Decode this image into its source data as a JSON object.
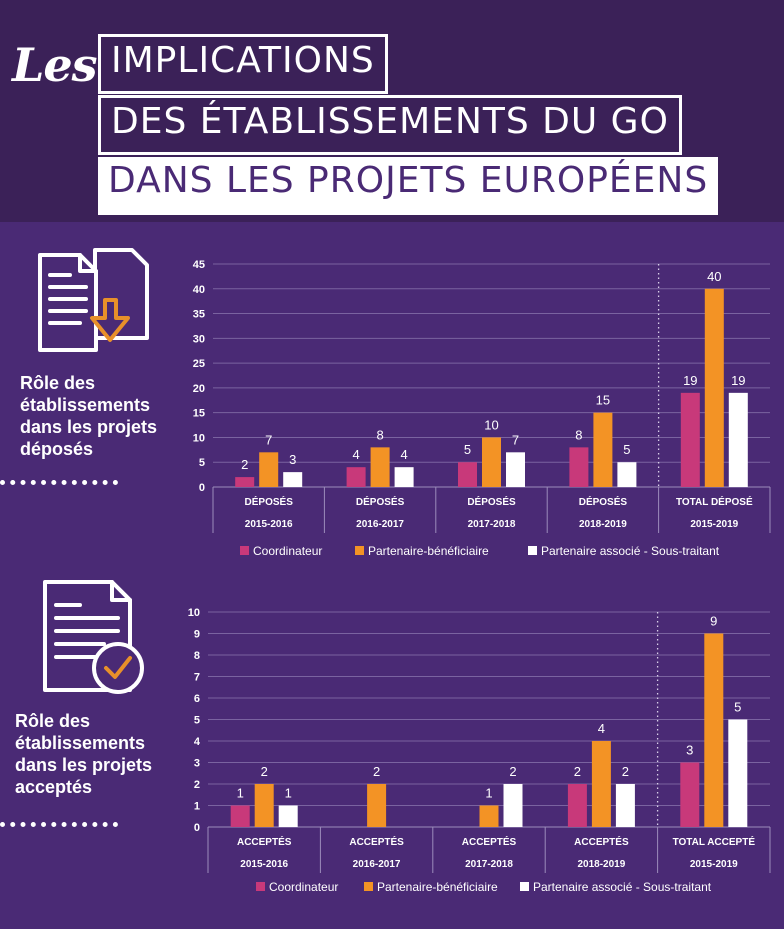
{
  "header": {
    "prefix": "Les",
    "line1": "IMPLICATIONS",
    "line2": "DES ÉTABLISSEMENTS DU GO",
    "line3": "DANS LES PROJETS EUROPÉENS"
  },
  "sections": [
    {
      "label_lines": [
        "Rôle des",
        "établissements",
        "dans les projets",
        "déposés"
      ],
      "icon": "document-download-icon"
    },
    {
      "label_lines": [
        "Rôle des",
        "établissements",
        "dans les projets",
        "acceptés"
      ],
      "icon": "document-check-icon"
    }
  ],
  "colors": {
    "coordinateur": "#c8397a",
    "partenaire": "#f39325",
    "associe": "#ffffff",
    "background": "#4a2a75",
    "header": "#3b2158",
    "icon_accent": "#e8902a"
  },
  "chart_data": [
    {
      "type": "bar",
      "categories": [
        [
          "DÉPOSÉS",
          "2015-2016"
        ],
        [
          "DÉPOSÉS",
          "2016-2017"
        ],
        [
          "DÉPOSÉS",
          "2017-2018"
        ],
        [
          "DÉPOSÉS",
          "2018-2019"
        ],
        [
          "TOTAL DÉPOSÉ",
          "2015-2019"
        ]
      ],
      "series": [
        {
          "name": "Coordinateur",
          "values": [
            2,
            4,
            5,
            8,
            19
          ]
        },
        {
          "name": "Partenaire-bénéficiaire",
          "values": [
            7,
            8,
            10,
            15,
            40
          ]
        },
        {
          "name": "Partenaire associé - Sous-traitant",
          "values": [
            3,
            4,
            7,
            5,
            19
          ]
        }
      ],
      "ylim": [
        0,
        45
      ],
      "yticks": [
        "0",
        "5",
        "10",
        "15",
        "20",
        "25",
        "30",
        "35",
        "40",
        "45"
      ],
      "grid": true,
      "legend": "bottom"
    },
    {
      "type": "bar",
      "categories": [
        [
          "ACCEPTÉS",
          "2015-2016"
        ],
        [
          "ACCEPTÉS",
          "2016-2017"
        ],
        [
          "ACCEPTÉS",
          "2017-2018"
        ],
        [
          "ACCEPTÉS",
          "2018-2019"
        ],
        [
          "TOTAL ACCEPTÉ",
          "2015-2019"
        ]
      ],
      "series": [
        {
          "name": "Coordinateur",
          "values": [
            1,
            null,
            null,
            2,
            3
          ]
        },
        {
          "name": "Partenaire-bénéficiaire",
          "values": [
            2,
            2,
            1,
            4,
            9
          ]
        },
        {
          "name": "Partenaire associé - Sous-traitant",
          "values": [
            1,
            null,
            2,
            2,
            5
          ]
        }
      ],
      "ylim": [
        0,
        10
      ],
      "yticks": [
        "0",
        "1",
        "2",
        "3",
        "4",
        "5",
        "6",
        "7",
        "8",
        "9",
        "10"
      ],
      "grid": true,
      "legend": "bottom"
    }
  ]
}
